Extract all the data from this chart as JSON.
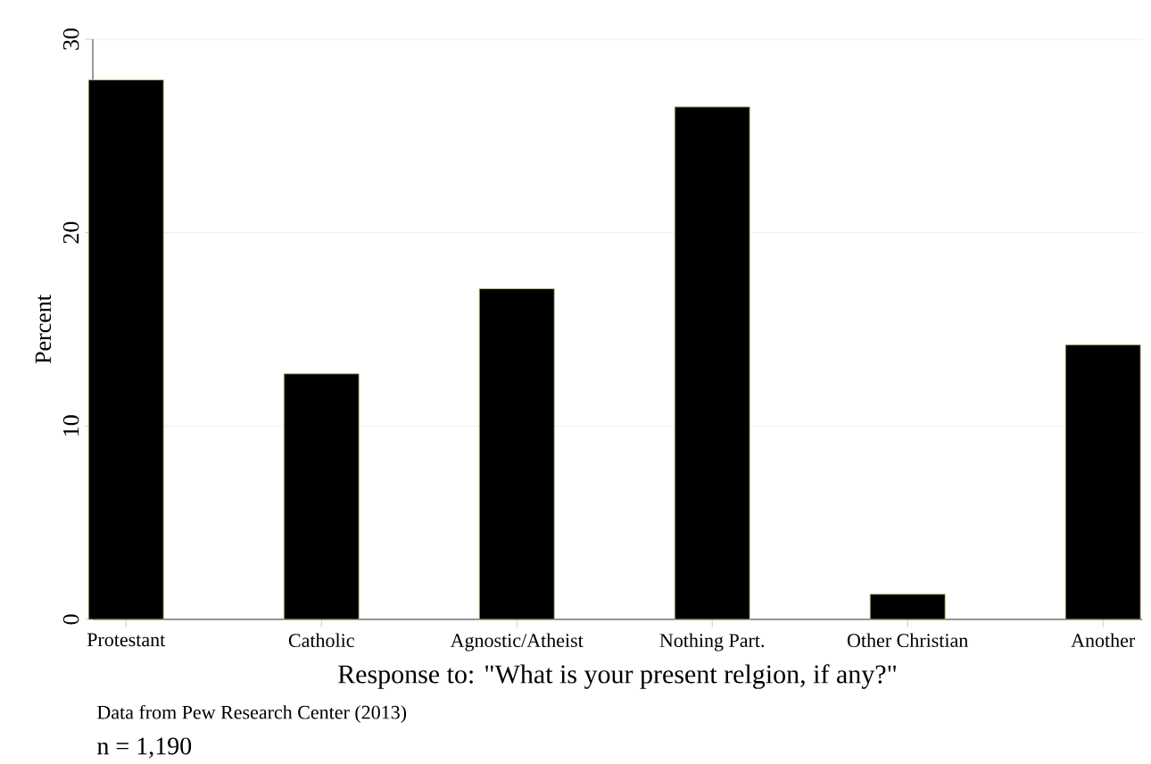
{
  "chart_data": {
    "type": "bar",
    "xlabel": "Response to: \"What is your present relgion, if any?\"",
    "ylabel": "Percent",
    "categories": [
      "Protestant",
      "Catholic",
      "Agnostic/Atheist",
      "Nothing Part.",
      "Other Christian",
      "Another"
    ],
    "values": [
      27.9,
      12.7,
      17.1,
      26.5,
      1.3,
      14.2
    ],
    "color": "#000000",
    "ylim": [
      0,
      30
    ],
    "yticks": [
      0,
      10,
      20,
      30
    ],
    "grid": "y",
    "annotations": [
      "Data from Pew Research Center (2013)",
      "n = 1,190"
    ]
  }
}
